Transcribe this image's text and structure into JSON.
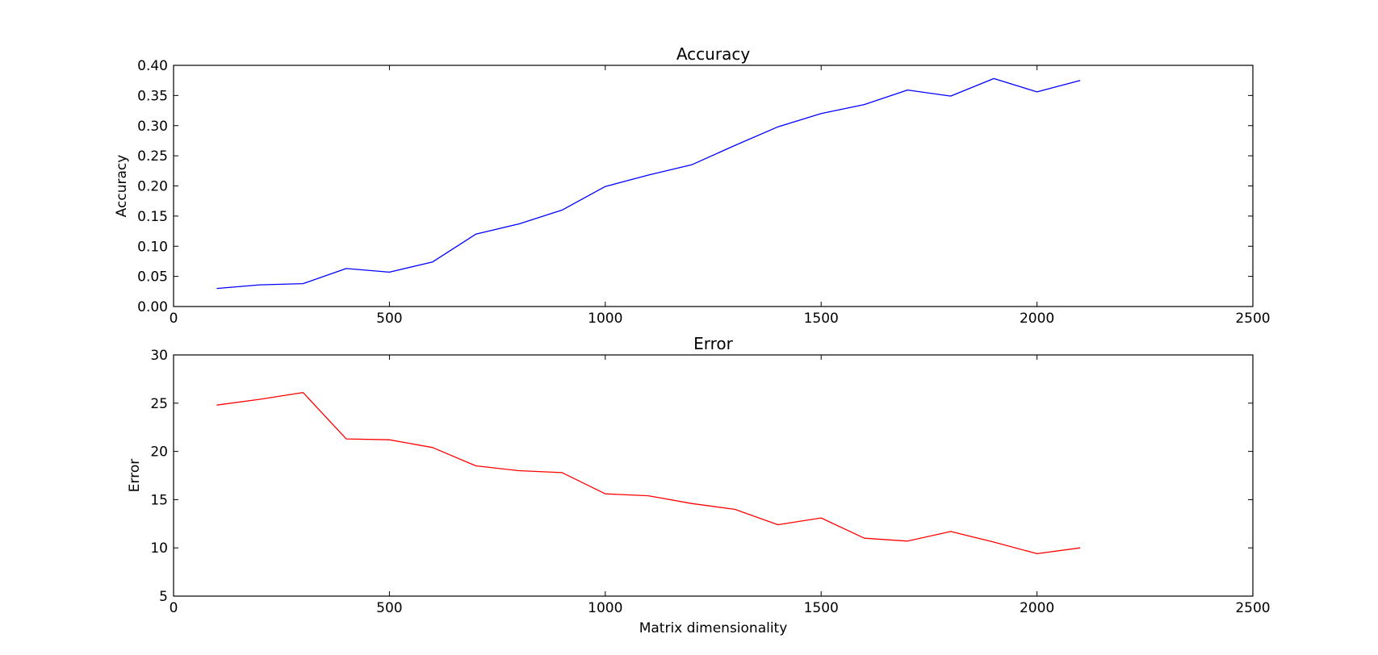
{
  "chart_data": [
    {
      "type": "line",
      "title": "Accuracy",
      "xlabel": "",
      "ylabel": "Accuracy",
      "xlim": [
        0,
        2500
      ],
      "ylim": [
        0,
        0.4
      ],
      "xticks": [
        "0",
        "500",
        "1000",
        "1500",
        "2000",
        "2500"
      ],
      "yticks": [
        "0.00",
        "0.05",
        "0.10",
        "0.15",
        "0.20",
        "0.25",
        "0.30",
        "0.35",
        "0.40"
      ],
      "grid": false,
      "series": [
        {
          "color": "#0000ff",
          "x": [
            100,
            200,
            300,
            400,
            500,
            600,
            700,
            800,
            900,
            1000,
            1100,
            1200,
            1300,
            1400,
            1500,
            1600,
            1700,
            1800,
            1900,
            2000,
            2100
          ],
          "y": [
            0.03,
            0.036,
            0.038,
            0.063,
            0.057,
            0.074,
            0.12,
            0.137,
            0.16,
            0.199,
            0.218,
            0.235,
            0.267,
            0.298,
            0.32,
            0.335,
            0.359,
            0.349,
            0.378,
            0.356,
            0.375
          ]
        }
      ]
    },
    {
      "type": "line",
      "title": "Error",
      "xlabel": "Matrix dimensionality",
      "ylabel": "Error",
      "xlim": [
        0,
        2500
      ],
      "ylim": [
        5,
        30
      ],
      "xticks": [
        "0",
        "500",
        "1000",
        "1500",
        "2000",
        "2500"
      ],
      "yticks": [
        "5",
        "10",
        "15",
        "20",
        "25",
        "30"
      ],
      "grid": false,
      "series": [
        {
          "color": "#ff0000",
          "x": [
            100,
            200,
            300,
            400,
            500,
            600,
            700,
            800,
            900,
            1000,
            1100,
            1200,
            1300,
            1400,
            1500,
            1600,
            1700,
            1800,
            1900,
            2000,
            2100
          ],
          "y": [
            24.8,
            25.4,
            26.1,
            21.3,
            21.2,
            20.4,
            18.5,
            18.0,
            17.8,
            15.6,
            15.4,
            14.6,
            14.0,
            12.4,
            13.1,
            11.0,
            10.7,
            11.7,
            10.6,
            9.4,
            10.0
          ]
        }
      ]
    }
  ]
}
